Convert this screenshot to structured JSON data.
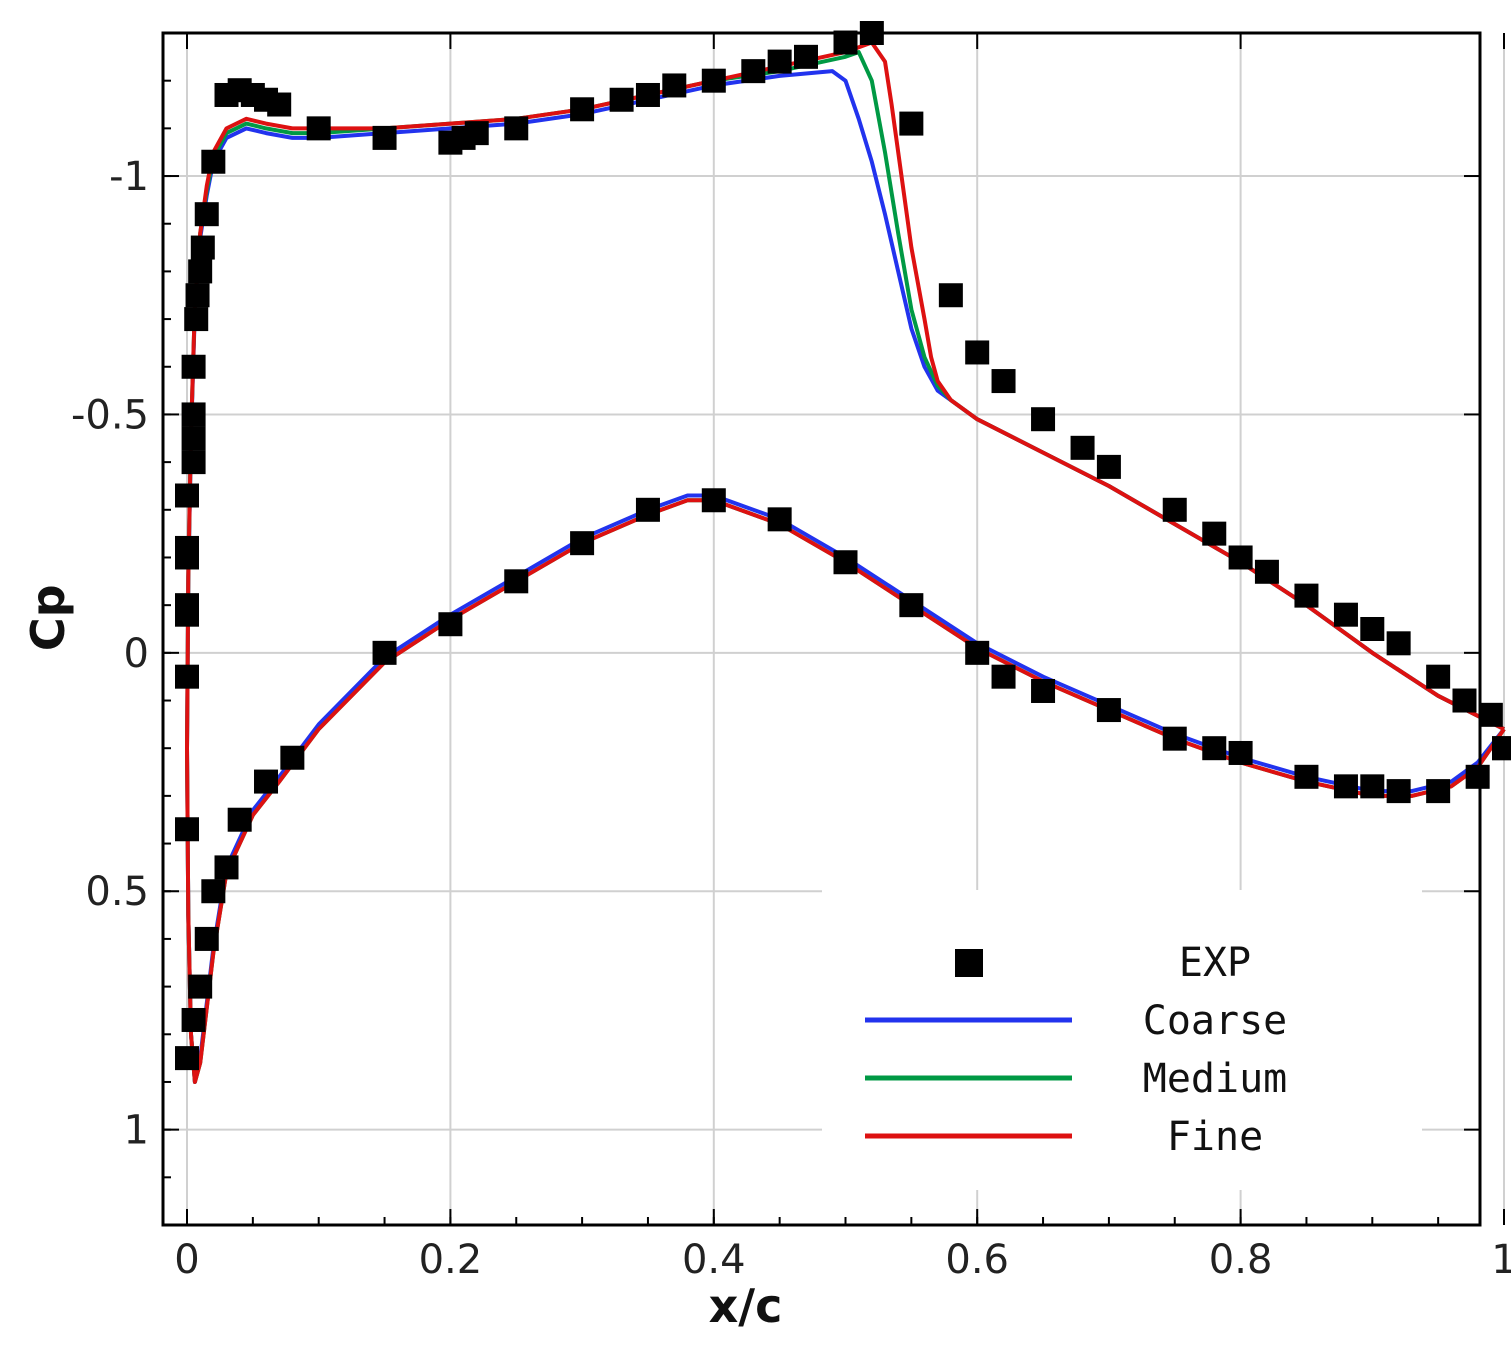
{
  "chart_data": {
    "type": "line",
    "title": "",
    "xlabel": "x/c",
    "ylabel": "Cp",
    "xlim": [
      0,
      1
    ],
    "ylim": [
      1.2,
      -1.3
    ],
    "y_inverted": true,
    "grid": true,
    "legend_position": "bottom-right",
    "x_ticks": [
      0,
      0.2,
      0.4,
      0.6,
      0.8,
      1
    ],
    "x_tick_labels": [
      "0",
      "0.2",
      "0.4",
      "0.6",
      "0.8",
      "1"
    ],
    "y_ticks": [
      -1,
      -0.5,
      0,
      0.5,
      1
    ],
    "y_tick_labels": [
      "-1",
      "-0.5",
      "0",
      "0.5",
      "1"
    ],
    "series": [
      {
        "name": "EXP",
        "kind": "marker",
        "color": "#000000",
        "x": [
          0.0,
          0.0,
          0.0,
          0.0,
          0.0,
          0.0,
          0.005,
          0.005,
          0.005,
          0.005,
          0.007,
          0.008,
          0.01,
          0.012,
          0.015,
          0.02,
          0.03,
          0.04,
          0.05,
          0.06,
          0.07,
          0.1,
          0.15,
          0.2,
          0.21,
          0.22,
          0.25,
          0.3,
          0.33,
          0.35,
          0.37,
          0.4,
          0.43,
          0.45,
          0.47,
          0.5,
          0.52,
          0.55,
          0.58,
          0.6,
          0.62,
          0.65,
          0.68,
          0.7,
          0.75,
          0.78,
          0.8,
          0.82,
          0.85,
          0.88,
          0.9,
          0.92,
          0.95,
          0.97,
          0.99,
          1.0,
          0.0,
          0.0,
          0.005,
          0.01,
          0.015,
          0.02,
          0.03,
          0.04,
          0.06,
          0.08,
          0.15,
          0.2,
          0.25,
          0.3,
          0.35,
          0.4,
          0.45,
          0.5,
          0.55,
          0.6,
          0.62,
          0.65,
          0.7,
          0.75,
          0.78,
          0.8,
          0.85,
          0.88,
          0.9,
          0.92,
          0.95,
          0.98,
          1.0
        ],
        "y": [
          0.05,
          -0.08,
          -0.1,
          -0.2,
          -0.22,
          -0.33,
          -0.4,
          -0.45,
          -0.5,
          -0.6,
          -0.7,
          -0.75,
          -0.8,
          -0.85,
          -0.92,
          -1.03,
          -1.17,
          -1.18,
          -1.17,
          -1.16,
          -1.15,
          -1.1,
          -1.08,
          -1.07,
          -1.08,
          -1.09,
          -1.1,
          -1.14,
          -1.16,
          -1.17,
          -1.19,
          -1.2,
          -1.22,
          -1.24,
          -1.25,
          -1.28,
          -1.3,
          -1.11,
          -0.75,
          -0.63,
          -0.57,
          -0.49,
          -0.43,
          -0.39,
          -0.3,
          -0.25,
          -0.2,
          -0.17,
          -0.12,
          -0.08,
          -0.05,
          -0.02,
          0.05,
          0.1,
          0.13,
          0.2,
          0.37,
          0.85,
          0.77,
          0.7,
          0.6,
          0.5,
          0.45,
          0.35,
          0.27,
          0.22,
          0.0,
          -0.06,
          -0.15,
          -0.23,
          -0.3,
          -0.32,
          -0.28,
          -0.19,
          -0.1,
          0.0,
          0.05,
          0.08,
          0.12,
          0.18,
          0.2,
          0.21,
          0.26,
          0.28,
          0.28,
          0.29,
          0.29,
          0.26,
          0.2
        ]
      },
      {
        "name": "Coarse",
        "kind": "line",
        "color": "#2233ee",
        "x": [
          1.0,
          0.95,
          0.9,
          0.85,
          0.8,
          0.75,
          0.7,
          0.65,
          0.6,
          0.57,
          0.56,
          0.55,
          0.54,
          0.53,
          0.52,
          0.51,
          0.5,
          0.49,
          0.45,
          0.4,
          0.35,
          0.3,
          0.25,
          0.2,
          0.15,
          0.1,
          0.08,
          0.06,
          0.045,
          0.03,
          0.02,
          0.015,
          0.01,
          0.006,
          0.003,
          0.001,
          0.0,
          0.001,
          0.003,
          0.006,
          0.01,
          0.02,
          0.03,
          0.05,
          0.07,
          0.1,
          0.15,
          0.2,
          0.25,
          0.3,
          0.35,
          0.38,
          0.4,
          0.45,
          0.5,
          0.55,
          0.6,
          0.65,
          0.7,
          0.75,
          0.8,
          0.85,
          0.9,
          0.93,
          0.96,
          0.98,
          1.0
        ],
        "y": [
          0.16,
          0.09,
          0.0,
          -0.1,
          -0.19,
          -0.27,
          -0.35,
          -0.42,
          -0.49,
          -0.55,
          -0.6,
          -0.68,
          -0.8,
          -0.92,
          -1.03,
          -1.12,
          -1.2,
          -1.22,
          -1.21,
          -1.19,
          -1.16,
          -1.13,
          -1.11,
          -1.1,
          -1.09,
          -1.08,
          -1.08,
          -1.09,
          -1.1,
          -1.08,
          -1.03,
          -0.96,
          -0.87,
          -0.72,
          -0.45,
          -0.15,
          0.2,
          0.55,
          0.8,
          0.9,
          0.85,
          0.62,
          0.45,
          0.33,
          0.26,
          0.15,
          0.01,
          -0.08,
          -0.16,
          -0.24,
          -0.3,
          -0.33,
          -0.33,
          -0.28,
          -0.2,
          -0.11,
          -0.02,
          0.05,
          0.11,
          0.17,
          0.22,
          0.26,
          0.29,
          0.29,
          0.27,
          0.23,
          0.16
        ]
      },
      {
        "name": "Medium",
        "kind": "line",
        "color": "#009944",
        "x": [
          1.0,
          0.95,
          0.9,
          0.85,
          0.8,
          0.75,
          0.7,
          0.65,
          0.6,
          0.58,
          0.57,
          0.56,
          0.55,
          0.54,
          0.53,
          0.52,
          0.51,
          0.5,
          0.45,
          0.4,
          0.35,
          0.3,
          0.25,
          0.2,
          0.15,
          0.1,
          0.08,
          0.06,
          0.045,
          0.03,
          0.02,
          0.015,
          0.01,
          0.006,
          0.003,
          0.001,
          0.0,
          0.001,
          0.003,
          0.006,
          0.01,
          0.02,
          0.03,
          0.05,
          0.07,
          0.1,
          0.15,
          0.2,
          0.25,
          0.3,
          0.35,
          0.38,
          0.4,
          0.45,
          0.5,
          0.55,
          0.6,
          0.65,
          0.7,
          0.75,
          0.8,
          0.85,
          0.9,
          0.93,
          0.96,
          0.98,
          1.0
        ],
        "y": [
          0.16,
          0.09,
          0.0,
          -0.1,
          -0.19,
          -0.27,
          -0.35,
          -0.42,
          -0.49,
          -0.53,
          -0.56,
          -0.62,
          -0.72,
          -0.88,
          -1.05,
          -1.2,
          -1.26,
          -1.25,
          -1.22,
          -1.2,
          -1.17,
          -1.14,
          -1.12,
          -1.11,
          -1.1,
          -1.09,
          -1.09,
          -1.1,
          -1.11,
          -1.09,
          -1.04,
          -0.97,
          -0.88,
          -0.73,
          -0.46,
          -0.16,
          0.2,
          0.55,
          0.8,
          0.9,
          0.86,
          0.63,
          0.46,
          0.34,
          0.27,
          0.16,
          0.02,
          -0.07,
          -0.15,
          -0.23,
          -0.29,
          -0.32,
          -0.32,
          -0.27,
          -0.19,
          -0.1,
          -0.01,
          0.06,
          0.12,
          0.18,
          0.23,
          0.27,
          0.3,
          0.3,
          0.28,
          0.24,
          0.16
        ]
      },
      {
        "name": "Fine",
        "kind": "line",
        "color": "#dd1111",
        "x": [
          1.0,
          0.95,
          0.9,
          0.85,
          0.8,
          0.75,
          0.7,
          0.65,
          0.6,
          0.58,
          0.57,
          0.565,
          0.56,
          0.55,
          0.54,
          0.535,
          0.53,
          0.52,
          0.5,
          0.45,
          0.4,
          0.35,
          0.3,
          0.25,
          0.2,
          0.15,
          0.1,
          0.08,
          0.06,
          0.045,
          0.03,
          0.02,
          0.015,
          0.01,
          0.006,
          0.003,
          0.001,
          0.0,
          0.001,
          0.003,
          0.006,
          0.01,
          0.02,
          0.03,
          0.05,
          0.07,
          0.1,
          0.15,
          0.2,
          0.25,
          0.3,
          0.35,
          0.38,
          0.4,
          0.45,
          0.5,
          0.55,
          0.6,
          0.65,
          0.7,
          0.75,
          0.8,
          0.85,
          0.9,
          0.93,
          0.96,
          0.98,
          1.0
        ],
        "y": [
          0.16,
          0.09,
          0.0,
          -0.1,
          -0.19,
          -0.27,
          -0.35,
          -0.42,
          -0.49,
          -0.53,
          -0.57,
          -0.62,
          -0.7,
          -0.85,
          -1.05,
          -1.15,
          -1.24,
          -1.28,
          -1.26,
          -1.23,
          -1.2,
          -1.17,
          -1.14,
          -1.12,
          -1.11,
          -1.1,
          -1.1,
          -1.1,
          -1.11,
          -1.12,
          -1.1,
          -1.05,
          -0.98,
          -0.88,
          -0.73,
          -0.46,
          -0.16,
          0.2,
          0.55,
          0.8,
          0.9,
          0.86,
          0.63,
          0.46,
          0.34,
          0.27,
          0.16,
          0.02,
          -0.07,
          -0.15,
          -0.23,
          -0.29,
          -0.32,
          -0.32,
          -0.27,
          -0.19,
          -0.1,
          -0.01,
          0.06,
          0.12,
          0.18,
          0.23,
          0.27,
          0.3,
          0.3,
          0.28,
          0.24,
          0.16
        ]
      }
    ]
  }
}
